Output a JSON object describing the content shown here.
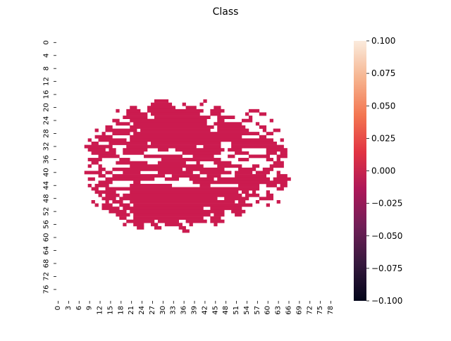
{
  "chart_data": {
    "type": "heatmap",
    "title": "Class",
    "xlabel": "",
    "ylabel": "",
    "x_tick_labels": [
      "0",
      "3",
      "6",
      "9",
      "12",
      "15",
      "18",
      "21",
      "24",
      "27",
      "30",
      "33",
      "36",
      "39",
      "42",
      "45",
      "48",
      "51",
      "54",
      "57",
      "60",
      "63",
      "66",
      "69",
      "72",
      "75",
      "78"
    ],
    "y_tick_labels": [
      "0",
      "4",
      "8",
      "12",
      "16",
      "20",
      "24",
      "28",
      "32",
      "36",
      "40",
      "44",
      "48",
      "52",
      "56",
      "60",
      "64",
      "68",
      "72",
      "76"
    ],
    "grid_shape": [
      80,
      80
    ],
    "cell_value": 0.0,
    "cell_color": "#cb1b4f",
    "background_color": "#ffffff",
    "mask_rows": [
      {
        "row": 18,
        "ranges": [
          [
            28,
            32
          ],
          [
            42,
            43
          ]
        ]
      },
      {
        "row": 19,
        "ranges": [
          [
            27,
            33
          ],
          [
            36,
            37
          ],
          [
            41,
            42
          ]
        ]
      },
      {
        "row": 20,
        "ranges": [
          [
            21,
            23
          ],
          [
            26,
            34
          ],
          [
            37,
            40
          ],
          [
            45,
            47
          ]
        ]
      },
      {
        "row": 21,
        "ranges": [
          [
            17,
            18
          ],
          [
            20,
            24
          ],
          [
            26,
            42
          ],
          [
            44,
            48
          ],
          [
            55,
            58
          ]
        ]
      },
      {
        "row": 22,
        "ranges": [
          [
            20,
            26
          ],
          [
            27,
            41
          ],
          [
            44,
            47
          ],
          [
            54,
            55
          ],
          [
            58,
            60
          ]
        ]
      },
      {
        "row": 23,
        "ranges": [
          [
            19,
            26
          ],
          [
            28,
            44
          ],
          [
            46,
            51
          ],
          [
            55,
            56
          ]
        ]
      },
      {
        "row": 24,
        "ranges": [
          [
            16,
            18
          ],
          [
            21,
            43
          ],
          [
            46,
            48
          ],
          [
            53,
            56
          ],
          [
            61,
            62
          ]
        ]
      },
      {
        "row": 25,
        "ranges": [
          [
            17,
            21
          ],
          [
            22,
            43
          ],
          [
            45,
            53
          ],
          [
            57,
            58
          ]
        ]
      },
      {
        "row": 26,
        "ranges": [
          [
            14,
            16
          ],
          [
            21,
            45
          ],
          [
            46,
            54
          ],
          [
            58,
            60
          ]
        ]
      },
      {
        "row": 27,
        "ranges": [
          [
            11,
            12
          ],
          [
            14,
            23
          ],
          [
            24,
            44
          ],
          [
            46,
            55
          ],
          [
            59,
            60
          ],
          [
            62,
            64
          ]
        ]
      },
      {
        "row": 28,
        "ranges": [
          [
            13,
            14
          ],
          [
            16,
            21
          ],
          [
            22,
            58
          ],
          [
            60,
            62
          ]
        ]
      },
      {
        "row": 29,
        "ranges": [
          [
            11,
            16
          ],
          [
            21,
            53
          ],
          [
            58,
            60
          ]
        ]
      },
      {
        "row": 30,
        "ranges": [
          [
            9,
            10
          ],
          [
            12,
            20
          ],
          [
            21,
            62
          ],
          [
            64,
            65
          ]
        ]
      },
      {
        "row": 31,
        "ranges": [
          [
            10,
            12
          ],
          [
            15,
            26
          ],
          [
            27,
            47
          ],
          [
            50,
            63
          ]
        ]
      },
      {
        "row": 32,
        "ranges": [
          [
            8,
            16
          ],
          [
            20,
            40
          ],
          [
            42,
            47
          ],
          [
            50,
            65
          ]
        ]
      },
      {
        "row": 33,
        "ranges": [
          [
            9,
            14
          ],
          [
            15,
            17
          ],
          [
            19,
            26
          ],
          [
            29,
            32
          ],
          [
            34,
            48
          ],
          [
            49,
            53
          ],
          [
            60,
            66
          ]
        ]
      },
      {
        "row": 34,
        "ranges": [
          [
            10,
            17
          ],
          [
            19,
            25
          ],
          [
            36,
            47
          ],
          [
            51,
            55
          ],
          [
            60,
            63
          ],
          [
            64,
            66
          ]
        ]
      },
      {
        "row": 35,
        "ranges": [
          [
            12,
            18
          ],
          [
            25,
            36
          ],
          [
            39,
            45
          ],
          [
            49,
            51
          ],
          [
            55,
            61
          ],
          [
            63,
            66
          ]
        ]
      },
      {
        "row": 36,
        "ranges": [
          [
            9,
            13
          ],
          [
            18,
            21
          ],
          [
            30,
            47
          ],
          [
            52,
            55
          ],
          [
            60,
            62
          ],
          [
            63,
            64
          ]
        ]
      },
      {
        "row": 37,
        "ranges": [
          [
            10,
            12
          ],
          [
            17,
            26
          ],
          [
            29,
            37
          ],
          [
            40,
            41
          ],
          [
            45,
            50
          ],
          [
            62,
            65
          ]
        ]
      },
      {
        "row": 38,
        "ranges": [
          [
            9,
            10
          ],
          [
            12,
            13
          ],
          [
            21,
            42
          ],
          [
            46,
            53
          ],
          [
            56,
            58
          ],
          [
            61,
            65
          ]
        ]
      },
      {
        "row": 39,
        "ranges": [
          [
            12,
            14
          ],
          [
            16,
            36
          ],
          [
            37,
            48
          ],
          [
            52,
            57
          ],
          [
            59,
            62
          ]
        ]
      },
      {
        "row": 40,
        "ranges": [
          [
            8,
            13
          ],
          [
            14,
            16
          ],
          [
            19,
            24
          ],
          [
            29,
            39
          ],
          [
            41,
            50
          ],
          [
            51,
            56
          ],
          [
            57,
            61
          ],
          [
            63,
            64
          ]
        ]
      },
      {
        "row": 41,
        "ranges": [
          [
            12,
            14
          ],
          [
            16,
            31
          ],
          [
            33,
            41
          ],
          [
            43,
            47
          ],
          [
            51,
            60
          ],
          [
            63,
            66
          ]
        ]
      },
      {
        "row": 42,
        "ranges": [
          [
            9,
            11
          ],
          [
            14,
            28
          ],
          [
            31,
            35
          ],
          [
            38,
            45
          ],
          [
            46,
            61
          ],
          [
            62,
            67
          ]
        ]
      },
      {
        "row": 43,
        "ranges": [
          [
            12,
            16
          ],
          [
            22,
            24
          ],
          [
            39,
            66
          ]
        ]
      },
      {
        "row": 44,
        "ranges": [
          [
            9,
            10
          ],
          [
            11,
            15
          ],
          [
            21,
            33
          ],
          [
            41,
            44
          ],
          [
            52,
            58
          ],
          [
            60,
            63
          ],
          [
            64,
            66
          ]
        ]
      },
      {
        "row": 45,
        "ranges": [
          [
            10,
            12
          ],
          [
            14,
            58
          ],
          [
            63,
            65
          ]
        ]
      },
      {
        "row": 46,
        "ranges": [
          [
            11,
            17
          ],
          [
            21,
            52
          ],
          [
            53,
            55
          ],
          [
            56,
            57
          ],
          [
            60,
            61
          ]
        ]
      },
      {
        "row": 47,
        "ranges": [
          [
            12,
            13
          ],
          [
            14,
            18
          ],
          [
            19,
            53
          ],
          [
            54,
            58
          ],
          [
            60,
            62
          ]
        ]
      },
      {
        "row": 48,
        "ranges": [
          [
            13,
            17
          ],
          [
            18,
            46
          ],
          [
            48,
            55
          ],
          [
            58,
            62
          ]
        ]
      },
      {
        "row": 49,
        "ranges": [
          [
            10,
            11
          ],
          [
            14,
            15
          ],
          [
            16,
            19
          ],
          [
            21,
            51
          ],
          [
            52,
            54
          ],
          [
            57,
            58
          ],
          [
            63,
            64
          ]
        ]
      },
      {
        "row": 50,
        "ranges": [
          [
            11,
            12
          ],
          [
            13,
            16
          ],
          [
            18,
            21
          ],
          [
            22,
            56
          ],
          [
            60,
            61
          ]
        ]
      },
      {
        "row": 51,
        "ranges": [
          [
            13,
            18
          ],
          [
            19,
            42
          ],
          [
            44,
            53
          ]
        ]
      },
      {
        "row": 52,
        "ranges": [
          [
            15,
            20
          ],
          [
            21,
            48
          ],
          [
            50,
            54
          ]
        ]
      },
      {
        "row": 53,
        "ranges": [
          [
            17,
            21
          ],
          [
            22,
            44
          ],
          [
            45,
            48
          ],
          [
            51,
            53
          ]
        ]
      },
      {
        "row": 54,
        "ranges": [
          [
            18,
            20
          ],
          [
            22,
            42
          ],
          [
            44,
            47
          ]
        ]
      },
      {
        "row": 55,
        "ranges": [
          [
            20,
            28
          ],
          [
            29,
            35
          ],
          [
            37,
            43
          ],
          [
            44,
            48
          ]
        ]
      },
      {
        "row": 56,
        "ranges": [
          [
            19,
            20
          ],
          [
            22,
            25
          ],
          [
            27,
            29
          ],
          [
            31,
            36
          ],
          [
            38,
            39
          ],
          [
            45,
            46
          ]
        ]
      },
      {
        "row": 57,
        "ranges": [
          [
            23,
            25
          ],
          [
            28,
            30
          ],
          [
            35,
            37
          ]
        ]
      },
      {
        "row": 58,
        "ranges": [
          [
            36,
            38
          ]
        ]
      }
    ],
    "colorbar": {
      "min": -0.1,
      "max": 0.1,
      "tick_labels": [
        "0.100",
        "0.075",
        "0.050",
        "0.025",
        "0.000",
        "−0.025",
        "−0.050",
        "−0.075",
        "−0.100"
      ],
      "tick_values": [
        0.1,
        0.075,
        0.05,
        0.025,
        0.0,
        -0.025,
        -0.05,
        -0.075,
        -0.1
      ],
      "colormap": "rocket",
      "colormap_stops": [
        "#03051a",
        "#36193e",
        "#701f57",
        "#ad1759",
        "#e13342",
        "#f37651",
        "#f6b48f",
        "#faebdd"
      ]
    }
  }
}
